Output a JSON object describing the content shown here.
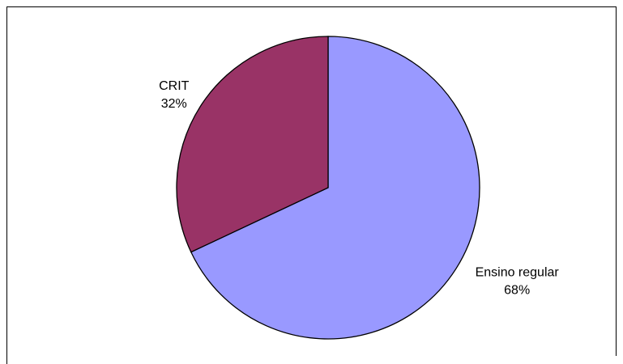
{
  "chart_data": {
    "type": "pie",
    "categories": [
      "Ensino regular",
      "CRIT"
    ],
    "values": [
      68,
      32
    ],
    "value_labels": [
      "68%",
      "32%"
    ],
    "colors": [
      "#9999ff",
      "#993366"
    ]
  }
}
